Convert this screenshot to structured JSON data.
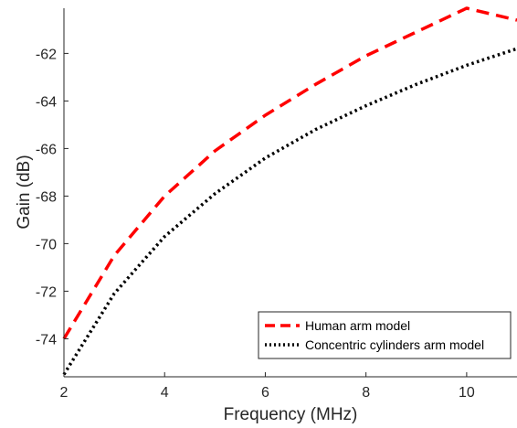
{
  "chart_data": {
    "type": "line",
    "title": "",
    "xlabel": "Frequency (MHz)",
    "ylabel": "Gain (dB)",
    "xlim": [
      2,
      11
    ],
    "ylim": [
      -75.6,
      -60.1
    ],
    "xticks": [
      2,
      4,
      6,
      8,
      10
    ],
    "yticks": [
      -74,
      -72,
      -70,
      -68,
      -66,
      -64,
      -62
    ],
    "grid": false,
    "legend_position": "bottom-right",
    "series": [
      {
        "name": "Human arm model",
        "color": "#ff0000",
        "style": "dashed",
        "x": [
          2,
          3,
          4,
          5,
          6,
          7,
          8,
          9,
          10,
          11
        ],
        "y": [
          -74.0,
          -70.5,
          -68.0,
          -66.1,
          -64.6,
          -63.3,
          -62.1,
          -61.1,
          -60.1,
          -60.6
        ]
      },
      {
        "name": "Concentric cylinders arm model",
        "color": "#000000",
        "style": "dotted",
        "x": [
          2,
          3,
          4,
          5,
          6,
          7,
          8,
          9,
          10,
          11
        ],
        "y": [
          -75.5,
          -72.1,
          -69.7,
          -67.9,
          -66.4,
          -65.2,
          -64.2,
          -63.3,
          -62.5,
          -61.8
        ]
      }
    ]
  }
}
